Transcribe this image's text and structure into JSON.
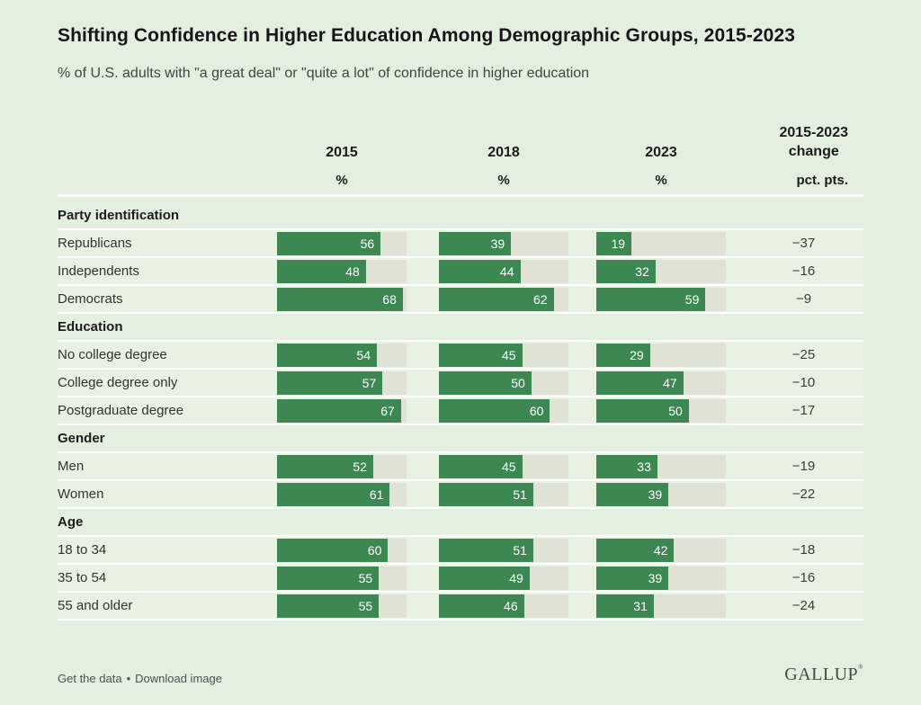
{
  "header": {
    "title": "Shifting Confidence in Higher Education Among Demographic Groups, 2015-2023",
    "subtitle": "% of U.S. adults with \"a great deal\" or \"quite a lot\" of confidence in higher education"
  },
  "columns": {
    "years": [
      "2015",
      "2018",
      "2023"
    ],
    "change_label_line1": "2015-2023",
    "change_label_line2": "change",
    "year_unit": "%",
    "change_unit": "pct. pts."
  },
  "chart_data": {
    "type": "bar",
    "title": "Shifting Confidence in Higher Education Among Demographic Groups, 2015-2023",
    "subtitle": "% of U.S. adults with \"a great deal\" or \"quite a lot\" of confidence in higher education",
    "series_years": [
      "2015",
      "2018",
      "2023"
    ],
    "bar_scale_max": 70,
    "sections": [
      {
        "label": "Party identification",
        "rows": [
          {
            "label": "Republicans",
            "values": [
              56,
              39,
              19
            ],
            "change": -37
          },
          {
            "label": "Independents",
            "values": [
              48,
              44,
              32
            ],
            "change": -16
          },
          {
            "label": "Democrats",
            "values": [
              68,
              62,
              59
            ],
            "change": -9
          }
        ]
      },
      {
        "label": "Education",
        "rows": [
          {
            "label": "No college degree",
            "values": [
              54,
              45,
              29
            ],
            "change": -25
          },
          {
            "label": "College degree only",
            "values": [
              57,
              50,
              47
            ],
            "change": -10
          },
          {
            "label": "Postgraduate degree",
            "values": [
              67,
              60,
              50
            ],
            "change": -17
          }
        ]
      },
      {
        "label": "Gender",
        "rows": [
          {
            "label": "Men",
            "values": [
              52,
              45,
              33
            ],
            "change": -19
          },
          {
            "label": "Women",
            "values": [
              61,
              51,
              39
            ],
            "change": -22
          }
        ]
      },
      {
        "label": "Age",
        "rows": [
          {
            "label": "18 to 34",
            "values": [
              60,
              51,
              42
            ],
            "change": -18
          },
          {
            "label": "35 to 54",
            "values": [
              55,
              49,
              39
            ],
            "change": -16
          },
          {
            "label": "55 and older",
            "values": [
              55,
              46,
              31
            ],
            "change": -24
          }
        ]
      }
    ]
  },
  "footer": {
    "links": [
      "Get the data",
      "Download image"
    ],
    "separator": "•",
    "logo": "GALLUP",
    "logo_mark": "®"
  },
  "colors": {
    "background": "#e3efdf",
    "row_background": "#e8f2e3",
    "bar_fill": "#3c8752",
    "bar_track": "#dfe2d5",
    "divider": "#ffffff"
  }
}
